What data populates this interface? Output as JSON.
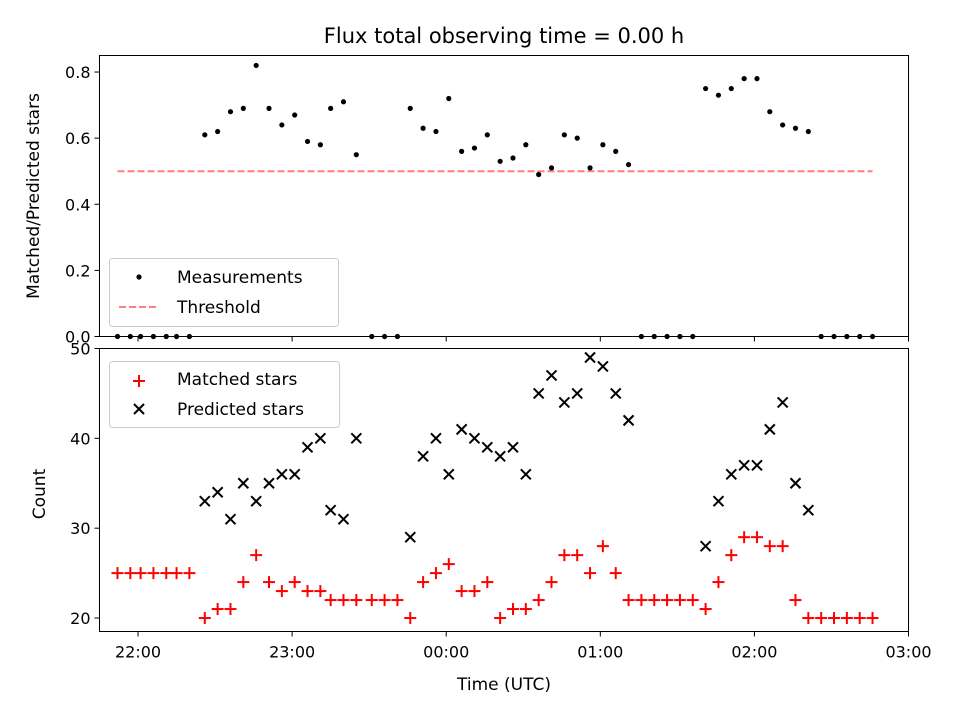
{
  "chart_data": [
    {
      "type": "scatter",
      "title": "Flux total observing time = 0.00 h",
      "ylabel": "Matched/Predicted stars",
      "xlabel": "",
      "xlim": [
        "21:45",
        "03:00"
      ],
      "ylim": [
        0,
        0.85
      ],
      "yticks": [
        "0.0",
        "0.2",
        "0.4",
        "0.6",
        "0.8"
      ],
      "legend_position": "lower-left",
      "series": [
        {
          "name": "Measurements",
          "marker": "dot",
          "color": "#000000",
          "points": [
            [
              "21:52",
              0
            ],
            [
              "21:57",
              0
            ],
            [
              "22:01",
              0
            ],
            [
              "22:06",
              0
            ],
            [
              "22:11",
              0
            ],
            [
              "22:15",
              0
            ],
            [
              "22:20",
              0
            ],
            [
              "22:26",
              0.61
            ],
            [
              "22:31",
              0.62
            ],
            [
              "22:36",
              0.68
            ],
            [
              "22:41",
              0.69
            ],
            [
              "22:46",
              0.82
            ],
            [
              "22:51",
              0.69
            ],
            [
              "22:56",
              0.64
            ],
            [
              "23:01",
              0.67
            ],
            [
              "23:06",
              0.59
            ],
            [
              "23:11",
              0.58
            ],
            [
              "23:15",
              0.69
            ],
            [
              "23:20",
              0.71
            ],
            [
              "23:25",
              0.55
            ],
            [
              "23:31",
              0
            ],
            [
              "23:36",
              0
            ],
            [
              "23:41",
              0
            ],
            [
              "23:46",
              0.69
            ],
            [
              "23:51",
              0.63
            ],
            [
              "23:56",
              0.62
            ],
            [
              "00:01",
              0.72
            ],
            [
              "00:06",
              0.56
            ],
            [
              "00:11",
              0.57
            ],
            [
              "00:16",
              0.61
            ],
            [
              "00:21",
              0.53
            ],
            [
              "00:26",
              0.54
            ],
            [
              "00:31",
              0.58
            ],
            [
              "00:36",
              0.49
            ],
            [
              "00:41",
              0.51
            ],
            [
              "00:46",
              0.61
            ],
            [
              "00:51",
              0.6
            ],
            [
              "00:56",
              0.51
            ],
            [
              "01:01",
              0.58
            ],
            [
              "01:06",
              0.56
            ],
            [
              "01:11",
              0.52
            ],
            [
              "01:16",
              0
            ],
            [
              "01:21",
              0
            ],
            [
              "01:26",
              0
            ],
            [
              "01:31",
              0
            ],
            [
              "01:36",
              0
            ],
            [
              "01:41",
              0.75
            ],
            [
              "01:46",
              0.73
            ],
            [
              "01:51",
              0.75
            ],
            [
              "01:56",
              0.78
            ],
            [
              "02:01",
              0.78
            ],
            [
              "02:06",
              0.68
            ],
            [
              "02:11",
              0.64
            ],
            [
              "02:16",
              0.63
            ],
            [
              "02:21",
              0.62
            ],
            [
              "02:26",
              0
            ],
            [
              "02:31",
              0
            ],
            [
              "02:36",
              0
            ],
            [
              "02:41",
              0
            ],
            [
              "02:46",
              0
            ]
          ]
        },
        {
          "name": "Threshold",
          "marker": "dashed-line",
          "color": "#ff7f7f",
          "points": [
            [
              "21:52",
              0.5
            ],
            [
              "02:46",
              0.5
            ]
          ]
        }
      ]
    },
    {
      "type": "scatter",
      "title": "",
      "ylabel": "Count",
      "xlabel": "Time (UTC)",
      "xlim": [
        "21:45",
        "03:00"
      ],
      "ylim": [
        18.5,
        50
      ],
      "xticks": [
        "22:00",
        "23:00",
        "00:00",
        "01:00",
        "02:00",
        "03:00"
      ],
      "yticks": [
        "20",
        "30",
        "40",
        "50"
      ],
      "legend_position": "top-left",
      "series": [
        {
          "name": "Matched stars",
          "marker": "plus",
          "color": "#ff0000",
          "points": [
            [
              "21:52",
              25
            ],
            [
              "21:57",
              25
            ],
            [
              "22:01",
              25
            ],
            [
              "22:06",
              25
            ],
            [
              "22:11",
              25
            ],
            [
              "22:15",
              25
            ],
            [
              "22:20",
              25
            ],
            [
              "22:26",
              20
            ],
            [
              "22:31",
              21
            ],
            [
              "22:36",
              21
            ],
            [
              "22:41",
              24
            ],
            [
              "22:46",
              27
            ],
            [
              "22:51",
              24
            ],
            [
              "22:56",
              23
            ],
            [
              "23:01",
              24
            ],
            [
              "23:06",
              23
            ],
            [
              "23:11",
              23
            ],
            [
              "23:15",
              22
            ],
            [
              "23:20",
              22
            ],
            [
              "23:25",
              22
            ],
            [
              "23:31",
              22
            ],
            [
              "23:36",
              22
            ],
            [
              "23:41",
              22
            ],
            [
              "23:46",
              20
            ],
            [
              "23:51",
              24
            ],
            [
              "23:56",
              25
            ],
            [
              "00:01",
              26
            ],
            [
              "00:06",
              23
            ],
            [
              "00:11",
              23
            ],
            [
              "00:16",
              24
            ],
            [
              "00:21",
              20
            ],
            [
              "00:26",
              21
            ],
            [
              "00:31",
              21
            ],
            [
              "00:36",
              22
            ],
            [
              "00:41",
              24
            ],
            [
              "00:46",
              27
            ],
            [
              "00:51",
              27
            ],
            [
              "00:56",
              25
            ],
            [
              "01:01",
              28
            ],
            [
              "01:06",
              25
            ],
            [
              "01:11",
              22
            ],
            [
              "01:16",
              22
            ],
            [
              "01:21",
              22
            ],
            [
              "01:26",
              22
            ],
            [
              "01:31",
              22
            ],
            [
              "01:36",
              22
            ],
            [
              "01:41",
              21
            ],
            [
              "01:46",
              24
            ],
            [
              "01:51",
              27
            ],
            [
              "01:56",
              29
            ],
            [
              "02:01",
              29
            ],
            [
              "02:06",
              28
            ],
            [
              "02:11",
              28
            ],
            [
              "02:16",
              22
            ],
            [
              "02:21",
              20
            ],
            [
              "02:26",
              20
            ],
            [
              "02:31",
              20
            ],
            [
              "02:36",
              20
            ],
            [
              "02:41",
              20
            ],
            [
              "02:46",
              20
            ]
          ]
        },
        {
          "name": "Predicted stars",
          "marker": "x",
          "color": "#000000",
          "points": [
            [
              "22:26",
              33
            ],
            [
              "22:31",
              34
            ],
            [
              "22:36",
              31
            ],
            [
              "22:41",
              35
            ],
            [
              "22:46",
              33
            ],
            [
              "22:51",
              35
            ],
            [
              "22:56",
              36
            ],
            [
              "23:01",
              36
            ],
            [
              "23:06",
              39
            ],
            [
              "23:11",
              40
            ],
            [
              "23:15",
              32
            ],
            [
              "23:20",
              31
            ],
            [
              "23:25",
              40
            ],
            [
              "23:46",
              29
            ],
            [
              "23:51",
              38
            ],
            [
              "23:56",
              40
            ],
            [
              "00:01",
              36
            ],
            [
              "00:06",
              41
            ],
            [
              "00:11",
              40
            ],
            [
              "00:16",
              39
            ],
            [
              "00:21",
              38
            ],
            [
              "00:26",
              39
            ],
            [
              "00:31",
              36
            ],
            [
              "00:36",
              45
            ],
            [
              "00:41",
              47
            ],
            [
              "00:46",
              44
            ],
            [
              "00:51",
              45
            ],
            [
              "00:56",
              49
            ],
            [
              "01:01",
              48
            ],
            [
              "01:06",
              45
            ],
            [
              "01:11",
              42
            ],
            [
              "01:41",
              28
            ],
            [
              "01:46",
              33
            ],
            [
              "01:51",
              36
            ],
            [
              "01:56",
              37
            ],
            [
              "02:01",
              37
            ],
            [
              "02:06",
              41
            ],
            [
              "02:11",
              44
            ],
            [
              "02:16",
              35
            ],
            [
              "02:21",
              32
            ]
          ]
        }
      ]
    }
  ]
}
